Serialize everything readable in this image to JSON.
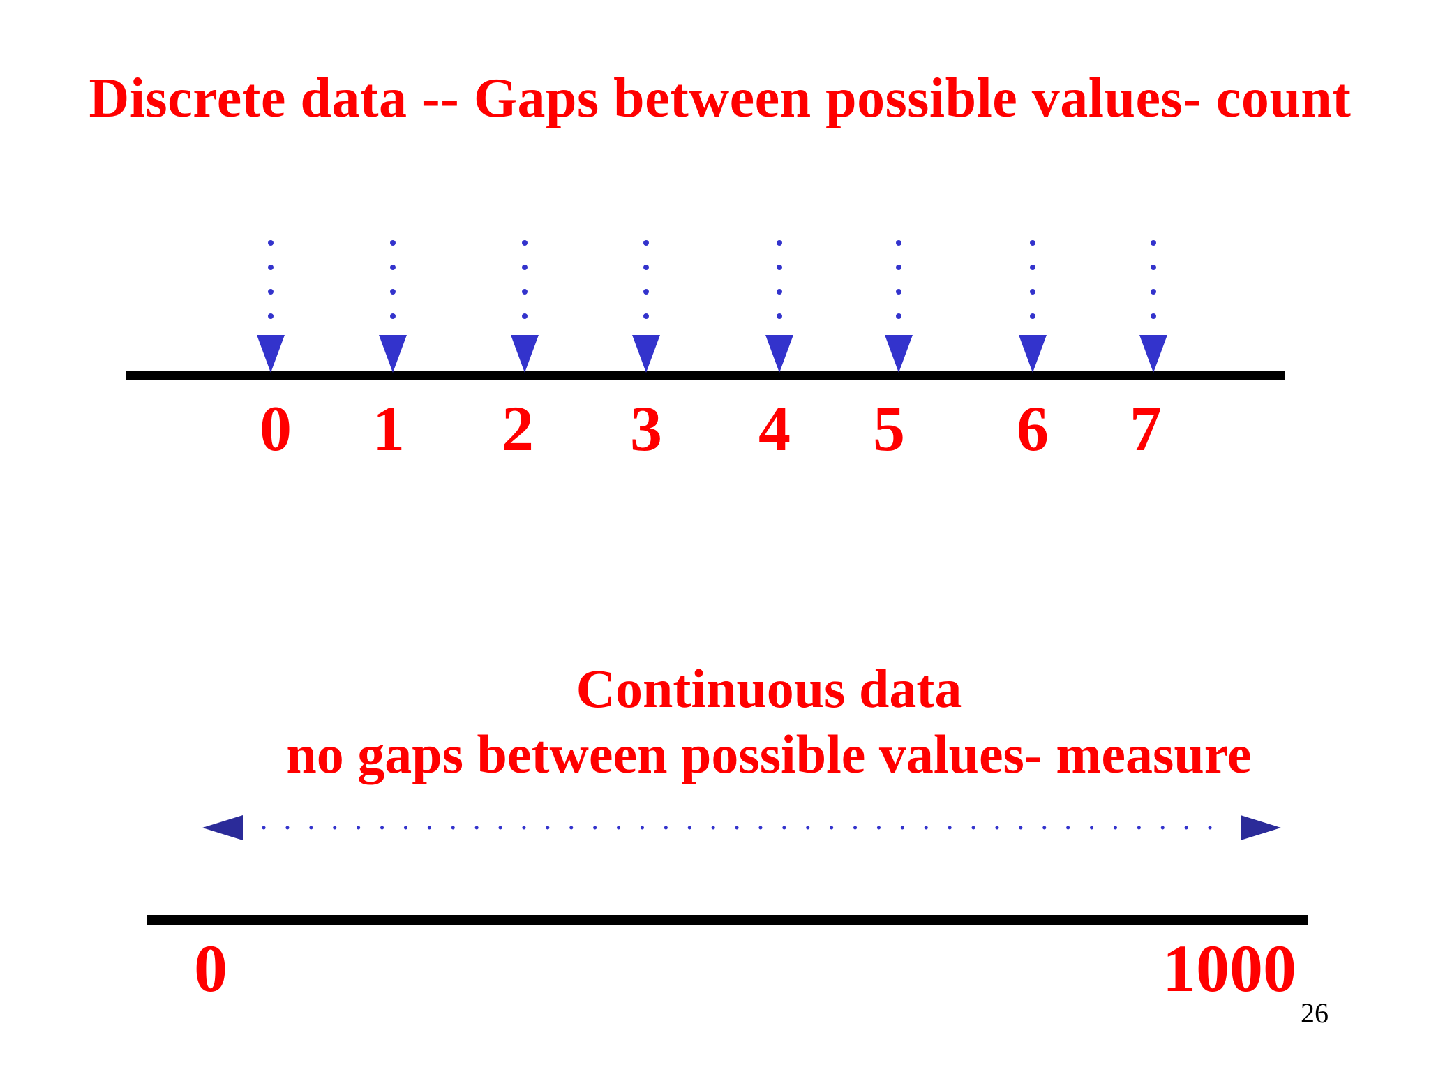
{
  "slide": {
    "discrete_title": "Discrete data -- Gaps between possible values- count",
    "continuous_title_line1": "Continuous data",
    "continuous_title_line2": "no gaps between possible values- measure",
    "page_number": "26"
  },
  "discrete_scale": {
    "values": [
      "0",
      "1",
      "2",
      "3",
      "4",
      "5",
      "6",
      "7"
    ]
  },
  "continuous_scale": {
    "min_label": "0",
    "max_label": "1000"
  },
  "colors": {
    "text": "#ff0000",
    "arrows": "#3333cc",
    "axis": "#000000"
  }
}
